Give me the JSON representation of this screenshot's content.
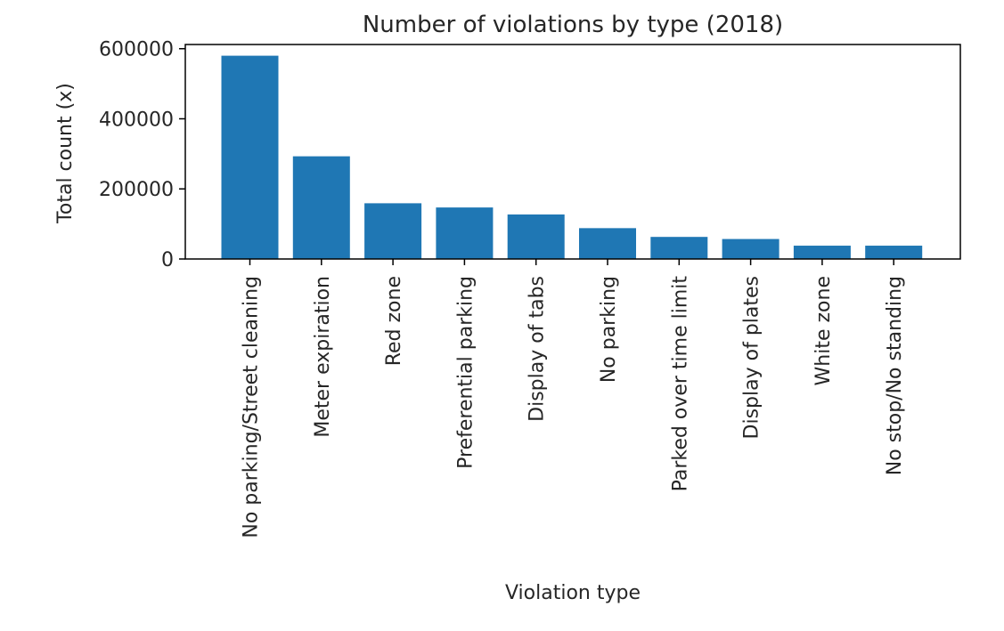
{
  "chart_data": {
    "type": "bar",
    "title": "Number of violations by type (2018)",
    "xlabel": "Violation type",
    "ylabel": "Total count (x)",
    "categories": [
      "No parking/Street cleaning",
      "Meter expiration",
      "Red zone",
      "Preferential parking",
      "Display of tabs",
      "No parking",
      "Parked over time limit",
      "Display of plates",
      "White zone",
      "No stop/No standing"
    ],
    "values": [
      580000,
      293000,
      159000,
      147000,
      127000,
      88000,
      63000,
      57000,
      38000,
      38000
    ],
    "ylim": [
      0,
      612000
    ],
    "yticks": [
      0,
      200000,
      400000,
      600000
    ],
    "ytick_labels": [
      "0",
      "200000",
      "400000",
      "600000"
    ],
    "bar_color": "#1f77b4",
    "grid": false,
    "legend": "none"
  }
}
